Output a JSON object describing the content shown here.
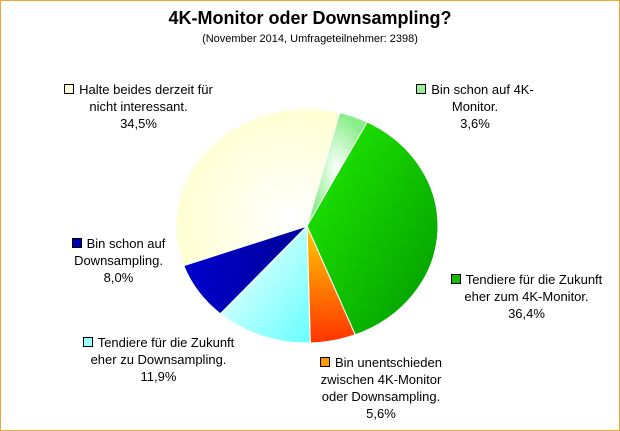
{
  "title": "4K-Monitor oder Downsampling?",
  "subtitle": "(November 2014, Umfrageteilnehmer: 2398)",
  "chart_data": {
    "type": "pie",
    "title": "4K-Monitor oder Downsampling?",
    "subtitle": "(November 2014, Umfrageteilnehmer: 2398)",
    "unit": "%",
    "slices": [
      {
        "label": "Bin schon auf 4K-Monitor.",
        "value": 3.6,
        "value_text": "3,6%",
        "color": "#99ee99"
      },
      {
        "label": "Tendiere für die Zukunft eher zum 4K-Monitor.",
        "value": 36.4,
        "value_text": "36,4%",
        "color": "#11bb00"
      },
      {
        "label": "Bin unentschieden zwischen 4K-Monitor oder Downsampling.",
        "value": 5.6,
        "value_text": "5,6%",
        "color": "#ff7700"
      },
      {
        "label": "Tendiere für die Zukunft eher zu Downsampling.",
        "value": 11.9,
        "value_text": "11,9%",
        "color": "#99ffff"
      },
      {
        "label": "Bin schon auf Downsampling.",
        "value": 8.0,
        "value_text": "8,0%",
        "color": "#0000bb"
      },
      {
        "label": "Halte beides derzeit für nicht interessant.",
        "value": 34.5,
        "value_text": "34,5%",
        "color": "#ffffdd"
      }
    ]
  },
  "legend": [
    {
      "line1": "Bin schon auf 4K-",
      "line2": "Monitor.",
      "line3": "",
      "pct": "3,6%",
      "swatch": "#99ee99"
    },
    {
      "line1": "Tendiere für die Zukunft",
      "line2": "eher zum 4K-Monitor.",
      "line3": "",
      "pct": "36,4%",
      "swatch": "#11bb00"
    },
    {
      "line1": "Bin unentschieden",
      "line2": "zwischen 4K-Monitor",
      "line3": "oder Downsampling.",
      "pct": "5,6%",
      "swatch": "#ff9900"
    },
    {
      "line1": "Tendiere für die Zukunft",
      "line2": "eher zu Downsampling.",
      "line3": "",
      "pct": "11,9%",
      "swatch": "#99ffff"
    },
    {
      "line1": "Bin schon auf",
      "line2": "Downsampling.",
      "line3": "",
      "pct": "8,0%",
      "swatch": "#0000bb"
    },
    {
      "line1": "Halte beides derzeit für",
      "line2": "nicht interessant.",
      "line3": "",
      "pct": "34,5%",
      "swatch": "#ffffdd"
    }
  ]
}
